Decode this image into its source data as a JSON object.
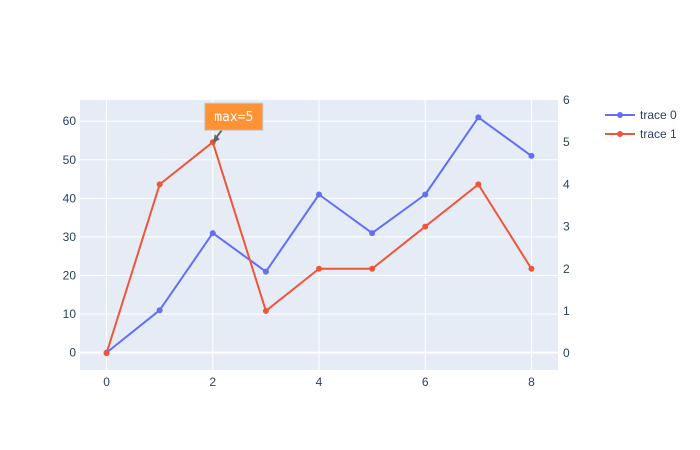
{
  "chart_data": {
    "type": "line",
    "x": [
      0,
      1,
      2,
      3,
      4,
      5,
      6,
      7,
      8
    ],
    "xlim": [
      -0.5,
      8.5
    ],
    "x_ticks": [
      0,
      2,
      4,
      6,
      8
    ],
    "y_left_lim": [
      -4.5,
      65.5
    ],
    "y_left_ticks": [
      0,
      10,
      20,
      30,
      40,
      50,
      60
    ],
    "y_right_lim": [
      -0.4,
      6.0
    ],
    "y_right_ticks": [
      0,
      1,
      2,
      3,
      4,
      5,
      6
    ],
    "grid": true,
    "legend_placement": "top-right",
    "series": [
      {
        "name": "trace 0",
        "axis": "left",
        "color": "#636efa",
        "values": [
          0,
          11,
          31,
          21,
          41,
          31,
          41,
          61,
          51
        ]
      },
      {
        "name": "trace 1",
        "axis": "right",
        "color": "#ef553b",
        "values": [
          0,
          4,
          5,
          1,
          2,
          2,
          3,
          4,
          2
        ]
      }
    ],
    "annotations": [
      {
        "text": "max=5",
        "series": 1,
        "x": 2,
        "y": 5,
        "bg": "#ff9234",
        "border": "#c7c7c7",
        "arrow_color": "#636363"
      }
    ]
  }
}
